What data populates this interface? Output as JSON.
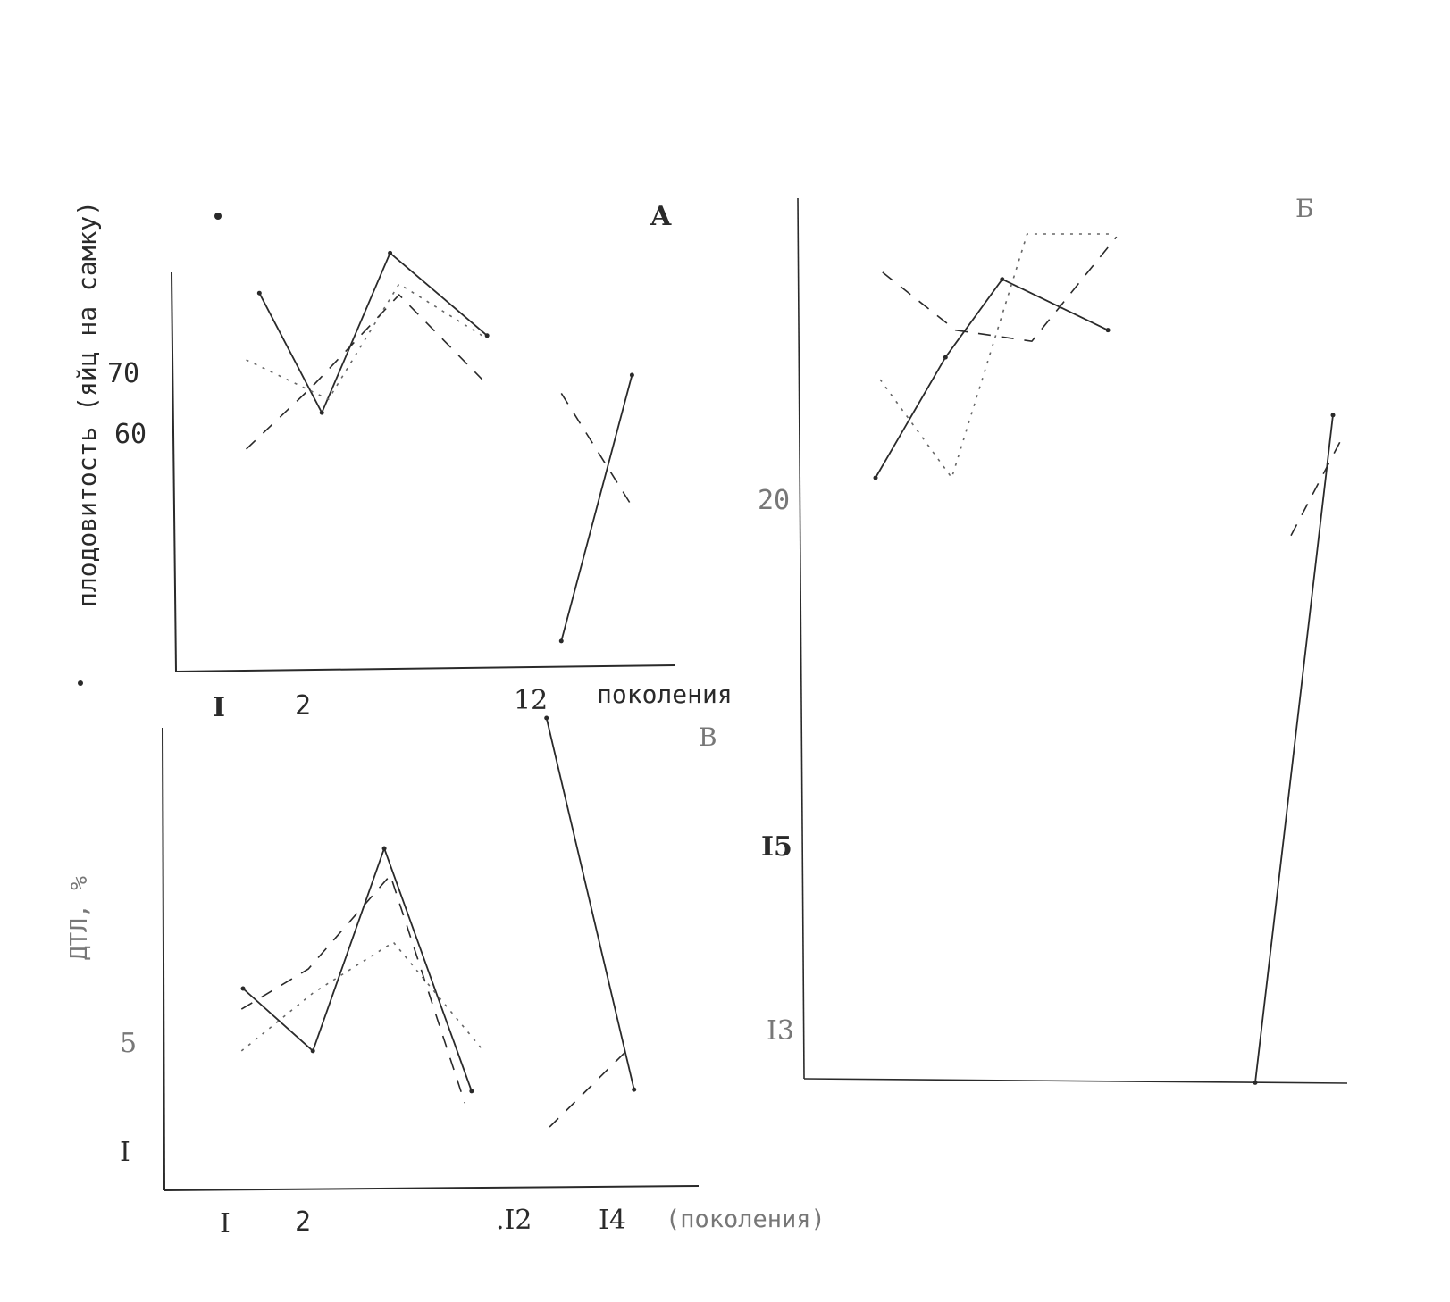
{
  "chart_data": [
    {
      "panel": "A",
      "type": "line",
      "ylabel": "плодовитость (яйц на самку)",
      "xlabel": "поколения",
      "x_ticks": [
        "I",
        "2",
        "12"
      ],
      "y_ticks": [
        "70",
        "60"
      ],
      "series": [
        {
          "style": "solid",
          "segments": [
            [
              [
                1.46,
                83.5
              ],
              [
                2.22,
                63.8
              ],
              [
                3.05,
                90.1
              ],
              [
                4.23,
                76.5
              ]
            ],
            [
              [
                12.34,
                26.2
              ],
              [
                13.2,
                70
              ]
            ]
          ]
        },
        {
          "style": "dotted",
          "segments": [
            [
              [
                1.3,
                72.5
              ],
              [
                2.3,
                66
              ],
              [
                3.16,
                85
              ],
              [
                4.23,
                76
              ]
            ]
          ]
        },
        {
          "style": "dashed",
          "segments": [
            [
              [
                1.3,
                57.8
              ],
              [
                2.11,
                68.2
              ],
              [
                3.16,
                83.2
              ],
              [
                4.17,
                69.3
              ]
            ],
            [
              [
                12.34,
                67
              ],
              [
                13.2,
                48.4
              ]
            ]
          ]
        }
      ]
    },
    {
      "panel": "Б",
      "type": "line",
      "y_ticks": [
        "20",
        "I5",
        "I3"
      ],
      "series": [
        {
          "style": "solid",
          "segments": [
            [
              [
                1,
                20.32
              ],
              [
                1.9,
                22.05
              ],
              [
                2.63,
                23.17
              ],
              [
                3.99,
                22.44
              ]
            ],
            [
              [
                12,
                12.44
              ],
              [
                13,
                21.22
              ]
            ]
          ]
        },
        {
          "style": "dotted",
          "segments": [
            [
              [
                1.06,
                21.73
              ],
              [
                1.98,
                20.32
              ],
              [
                2.95,
                23.82
              ],
              [
                4.05,
                23.82
              ]
            ]
          ]
        },
        {
          "style": "dashed",
          "segments": [
            [
              [
                1.09,
                23.27
              ],
              [
                2.03,
                22.44
              ],
              [
                3.01,
                22.28
              ],
              [
                4.1,
                23.78
              ]
            ],
            [
              [
                12.46,
                19.49
              ],
              [
                13.15,
                20.96
              ]
            ]
          ]
        }
      ]
    },
    {
      "panel": "В",
      "type": "line",
      "ylabel": "ДТЛ, %",
      "xlabel": "(поколения)",
      "x_ticks": [
        "I",
        "2",
        ".I2",
        "I4"
      ],
      "y_ticks": [
        "5",
        "I"
      ],
      "series": [
        {
          "style": "solid",
          "segments": [
            [
              [
                1.2,
                7.1
              ],
              [
                2.12,
                4.77
              ],
              [
                3.06,
                12.33
              ],
              [
                4.21,
                3.27
              ]
            ],
            [
              [
                12.3,
                17.2
              ],
              [
                14.3,
                3.33
              ]
            ]
          ]
        },
        {
          "style": "dashed",
          "segments": [
            [
              [
                1.18,
                6.33
              ],
              [
                2.06,
                7.83
              ],
              [
                3.14,
                11.33
              ],
              [
                4.12,
                2.83
              ]
            ],
            [
              [
                12.37,
                1.93
              ],
              [
                14.1,
                4.73
              ]
            ]
          ]
        },
        {
          "style": "dotted",
          "segments": [
            [
              [
                1.18,
                4.77
              ],
              [
                2.12,
                6.93
              ],
              [
                3.18,
                8.83
              ],
              [
                4.35,
                4.83
              ]
            ]
          ]
        }
      ]
    }
  ],
  "colors": {
    "ink": "#2a2a2a",
    "paper": "#ffffff"
  }
}
